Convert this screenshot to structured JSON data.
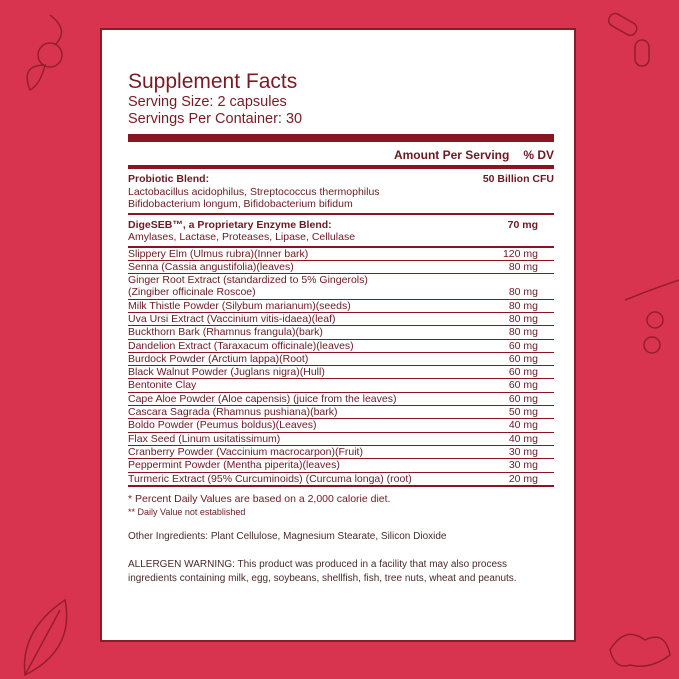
{
  "title": "Supplement Facts",
  "serving_size": "Serving Size: 2 capsules",
  "servings_per_container": "Servings Per Container: 30",
  "header": {
    "amount": "Amount Per Serving",
    "dv": "% DV"
  },
  "blends": [
    {
      "name": "Probiotic Blend:",
      "amount": "50 Billion CFU",
      "lines": [
        "Lactobacillus acidophilus, Streptococcus thermophilus",
        "Bifidobacterium longum, Bifidobacterium bifidum"
      ]
    },
    {
      "name": "DigeSEB™, a Proprietary Enzyme Blend:",
      "amount": "70 mg",
      "lines": [
        "Amylases, Lactase, Proteases, Lipase, Cellulase"
      ]
    }
  ],
  "ingredients": [
    {
      "name": "Slippery Elm (Ulmus rubra)(Inner bark)",
      "amount": "120 mg"
    },
    {
      "name": "Senna (Cassia angustifolia)(leaves)",
      "amount": "80 mg"
    },
    {
      "name": "Ginger Root Extract (standardized to 5% Gingerols)",
      "name2": "(Zingiber officinale Roscoe)",
      "amount": "80 mg"
    },
    {
      "name": "Milk Thistle Powder (Silybum marianum)(seeds)",
      "amount": "80 mg"
    },
    {
      "name": "Uva Ursi Extract (Vaccinium vitis-idaea)(leaf)",
      "amount": "80 mg"
    },
    {
      "name": "Buckthorn Bark (Rhamnus frangula)(bark)",
      "amount": "80 mg"
    },
    {
      "name": "Dandelion Extract (Taraxacum officinale)(leaves)",
      "amount": "60 mg"
    },
    {
      "name": "Burdock Powder (Arctium lappa)(Root)",
      "amount": "60 mg"
    },
    {
      "name": "Black Walnut Powder (Juglans nigra)(Hull)",
      "amount": "60 mg"
    },
    {
      "name": "Bentonite Clay",
      "amount": "60 mg"
    },
    {
      "name": "Cape Aloe Powder (Aloe capensis) (juice from the leaves)",
      "amount": "60 mg"
    },
    {
      "name": "Cascara Sagrada (Rhamnus pushiana)(bark)",
      "amount": "50 mg"
    },
    {
      "name": "Boldo Powder (Peumus boldus)(Leaves)",
      "amount": "40 mg"
    },
    {
      "name": "Flax Seed (Linum usitatissimum)",
      "amount": "40 mg"
    },
    {
      "name": "Cranberry Powder (Vaccinium macrocarpon)(Fruit)",
      "amount": "30 mg"
    },
    {
      "name": "Peppermint Powder (Mentha piperita)(leaves)",
      "amount": "30 mg"
    },
    {
      "name": "Turmeric Extract (95% Curcuminoids) (Curcuma longa) (root)",
      "amount": "20 mg"
    }
  ],
  "footnote1": "* Percent Daily Values are based on a 2,000 calorie diet.",
  "footnote2": "** Daily Value not established",
  "other": "Other Ingredients: Plant Cellulose, Magnesium Stearate, Silicon Dioxide",
  "warning": "ALLERGEN WARNING: This product was produced in a facility that may also process ingredients containing milk, egg, soybeans, shellfish, fish, tree nuts, wheat and peanuts.",
  "colors": {
    "background": "#d9344f",
    "accent": "#8a1421"
  }
}
